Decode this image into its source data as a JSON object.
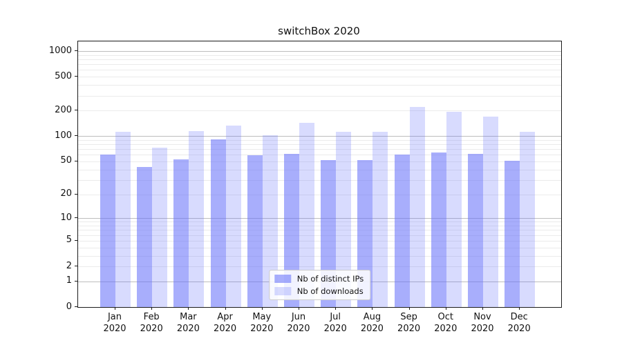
{
  "title": "switchBox 2020",
  "chart_data": {
    "type": "bar",
    "title": "switchBox 2020",
    "categories": [
      "Jan 2020",
      "Feb 2020",
      "Mar 2020",
      "Apr 2020",
      "May 2020",
      "Jun 2020",
      "Jul 2020",
      "Aug 2020",
      "Sep 2020",
      "Oct 2020",
      "Nov 2020",
      "Dec 2020"
    ],
    "series": [
      {
        "name": "Nb of distinct IPs",
        "color": "rgba(99,110,250,0.56)",
        "values": [
          60,
          43,
          53,
          92,
          59,
          62,
          52,
          52,
          60,
          64,
          61,
          51
        ]
      },
      {
        "name": "Nb of downloads",
        "color": "rgba(99,110,250,0.25)",
        "values": [
          113,
          73,
          114,
          132,
          103,
          143,
          113,
          112,
          220,
          192,
          170,
          112
        ]
      }
    ],
    "xlabel": "",
    "ylabel": "",
    "yscale": "symlog",
    "ylim": [
      0,
      1300
    ],
    "yticks": [
      0,
      1,
      2,
      5,
      10,
      20,
      50,
      100,
      200,
      500,
      1000
    ],
    "minor_gridlines": [
      2,
      3,
      4,
      5,
      6,
      7,
      8,
      9,
      20,
      30,
      40,
      50,
      60,
      70,
      80,
      90,
      200,
      300,
      400,
      500,
      600,
      700,
      800,
      900
    ],
    "major_gridlines": [
      1,
      10,
      100,
      1000
    ],
    "grid": true,
    "legend_position": "lower center",
    "colors": {
      "bar_base": "#636efa",
      "major_grid": "#bdbdbd",
      "minor_grid": "#ebebeb",
      "axis": "#1a1a1a",
      "text": "#111111",
      "background": "#ffffff"
    }
  }
}
